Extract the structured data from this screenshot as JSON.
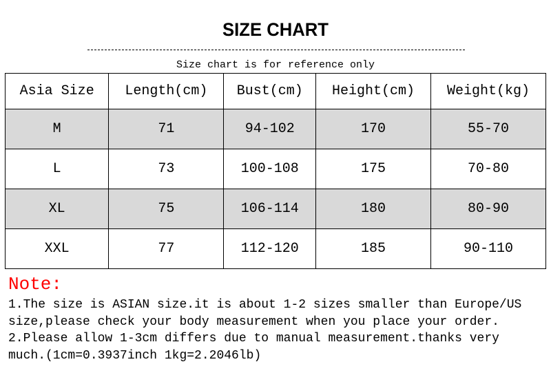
{
  "title": "SIZE CHART",
  "subtitle": "Size chart is for reference only",
  "table": {
    "headers": [
      "Asia Size",
      "Length(cm)",
      "Bust(cm)",
      "Height(cm)",
      "Weight(kg)"
    ],
    "rows": [
      [
        "M",
        "71",
        "94-102",
        "170",
        "55-70"
      ],
      [
        "L",
        "73",
        "100-108",
        "175",
        "70-80"
      ],
      [
        "XL",
        "75",
        "106-114",
        "180",
        "80-90"
      ],
      [
        "XXL",
        "77",
        "112-120",
        "185",
        "90-110"
      ]
    ],
    "shaded_row_color": "#d9d9d9"
  },
  "note": {
    "label": "Note:",
    "label_color": "#ff0000",
    "lines": [
      "1.The size is ASIAN size.it is about 1-2 sizes smaller than Europe/US",
      "size,please check your body measurement when you place your order.",
      "2.Please allow 1-3cm differs due to manual measurement.thanks very",
      "much.(1cm=0.3937inch 1kg=2.2046lb)"
    ]
  }
}
